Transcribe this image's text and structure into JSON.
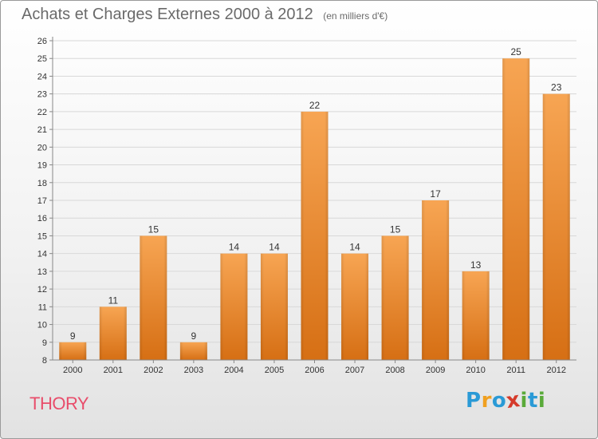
{
  "header": {
    "title": "Achats et Charges Externes 2000 à 2012",
    "unit": "(en milliers d'€)"
  },
  "commune_name": "THORY",
  "logo": {
    "text": "Proxiti",
    "letters": [
      {
        "char": "P",
        "color": "#2a9ad6"
      },
      {
        "char": "r",
        "color": "#f0a020"
      },
      {
        "char": "o",
        "color": "#2a9ad6"
      },
      {
        "char": "x",
        "color": "#d53a2a"
      },
      {
        "char": "i",
        "color": "#5aaa3a"
      },
      {
        "char": "t",
        "color": "#2a9ad6"
      },
      {
        "char": "i",
        "color": "#5aaa3a"
      }
    ]
  },
  "colors": {
    "bar_top": "#f7a553",
    "bar_bottom": "#d66f14",
    "grid": "#d8d8d8",
    "axis_text": "#333333",
    "commune": "#e84d6b"
  },
  "chart_data": {
    "type": "bar",
    "title": "Achats et Charges Externes 2000 à 2012",
    "subtitle": "(en milliers d'€)",
    "categories": [
      "2000",
      "2001",
      "2002",
      "2003",
      "2004",
      "2005",
      "2006",
      "2007",
      "2008",
      "2009",
      "2010",
      "2011",
      "2012"
    ],
    "values": [
      9,
      11,
      15,
      9,
      14,
      14,
      22,
      14,
      15,
      17,
      13,
      25,
      23
    ],
    "xlabel": "",
    "ylabel": "",
    "ylim": [
      8,
      26
    ],
    "yticks": [
      8,
      9,
      10,
      11,
      12,
      13,
      14,
      15,
      16,
      17,
      18,
      19,
      20,
      21,
      22,
      23,
      24,
      25,
      26
    ],
    "grid": true,
    "legend": "none"
  }
}
